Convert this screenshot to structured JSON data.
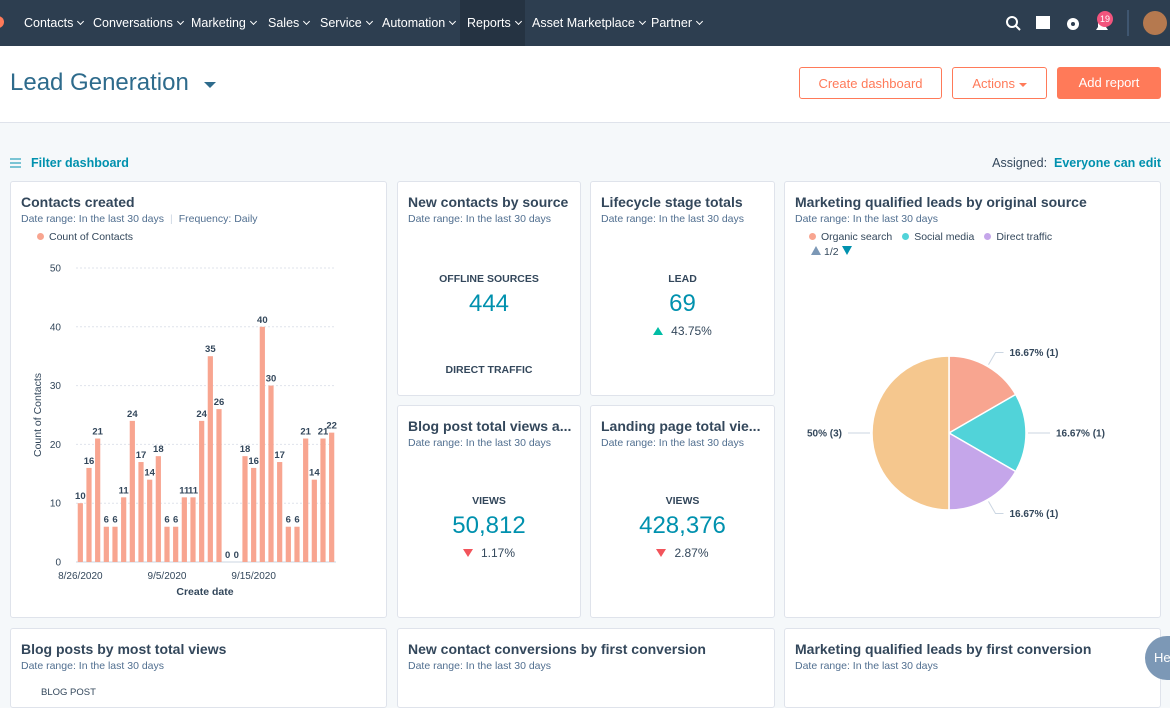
{
  "nav": {
    "items": [
      "Contacts",
      "Conversations",
      "Marketing",
      "Sales",
      "Service",
      "Automation",
      "Reports",
      "Asset Marketplace",
      "Partner"
    ],
    "badge": "19"
  },
  "header": {
    "title": "Lead Generation",
    "buttons": [
      "Create dashboard",
      "Actions",
      "Add report"
    ]
  },
  "toolbar": {
    "filter": "Filter dashboard",
    "assigned_label": "Assigned:",
    "assigned_value": "Everyone can edit"
  },
  "source_card": {
    "title": "New contacts by source",
    "subtitle": "Date range: In the last 30 days",
    "metric_label": "OFFLINE SOURCES",
    "metric_value": "444",
    "second_label": "DIRECT TRAFFIC"
  },
  "lifecycle_card": {
    "title": "Lifecycle stage totals",
    "subtitle": "Date range: In the last 30 days",
    "metric_label": "LEAD",
    "metric_value": "69",
    "change": "43.75%"
  },
  "blog_views_card": {
    "title": "Blog post total views a...",
    "subtitle": "Date range: In the last 30 days",
    "metric_label": "VIEWS",
    "metric_value": "50,812",
    "change": "1.17%"
  },
  "landing_views_card": {
    "title": "Landing page total vie...",
    "subtitle": "Date range: In the last 30 days",
    "metric_label": "VIEWS",
    "metric_value": "428,376",
    "change": "2.87%"
  },
  "bottom_cards": [
    {
      "title": "Blog posts by most total views",
      "subtitle": "Date range: In the last 30 days",
      "column": "BLOG POST"
    },
    {
      "title": "New contact conversions by first conversion",
      "subtitle": "Date range: In the last 30 days"
    },
    {
      "title": "Marketing qualified leads by first conversion",
      "subtitle": "Date range: In the last 30 days"
    }
  ],
  "help": {
    "label": "He"
  },
  "chart_data": [
    {
      "type": "bar",
      "title": "Contacts created",
      "subtitle": "Date range: In the last 30 days",
      "frequency": "Frequency: Daily",
      "series_name": "Count of Contacts",
      "y_label": "Count of Contacts",
      "x_label": "Create date",
      "color": "#f8a590",
      "categories": [
        "8/26/2020",
        null,
        null,
        null,
        null,
        null,
        null,
        null,
        null,
        null,
        "9/5/2020",
        null,
        null,
        null,
        null,
        null,
        null,
        null,
        null,
        null,
        "9/15/2020",
        null,
        null,
        null,
        null,
        null,
        null,
        null,
        null,
        null
      ],
      "values": [
        10,
        16,
        21,
        6,
        6,
        11,
        24,
        17,
        14,
        18,
        6,
        6,
        11,
        11,
        24,
        35,
        26,
        0,
        0,
        18,
        16,
        40,
        30,
        17,
        6,
        6,
        21,
        14,
        21,
        22
      ],
      "ylim": [
        0,
        50
      ],
      "yticks": [
        0,
        10,
        20,
        30,
        40,
        50
      ],
      "grid": true
    },
    {
      "type": "pie",
      "title": "Marketing qualified leads by original source",
      "subtitle": "Date range: In the last 30 days",
      "pagination": "1/2",
      "categories": [
        "Organic search",
        "Social media",
        "Direct traffic",
        null
      ],
      "values": [
        16.67,
        16.67,
        16.67,
        50
      ],
      "value_labels": [
        "16.67% (1)",
        "16.67% (1)",
        "16.67% (1)",
        "50% (3)"
      ],
      "colors": [
        "#f8a590",
        "#51d3d9",
        "#c5a6ea",
        "#f5c78e"
      ]
    }
  ]
}
